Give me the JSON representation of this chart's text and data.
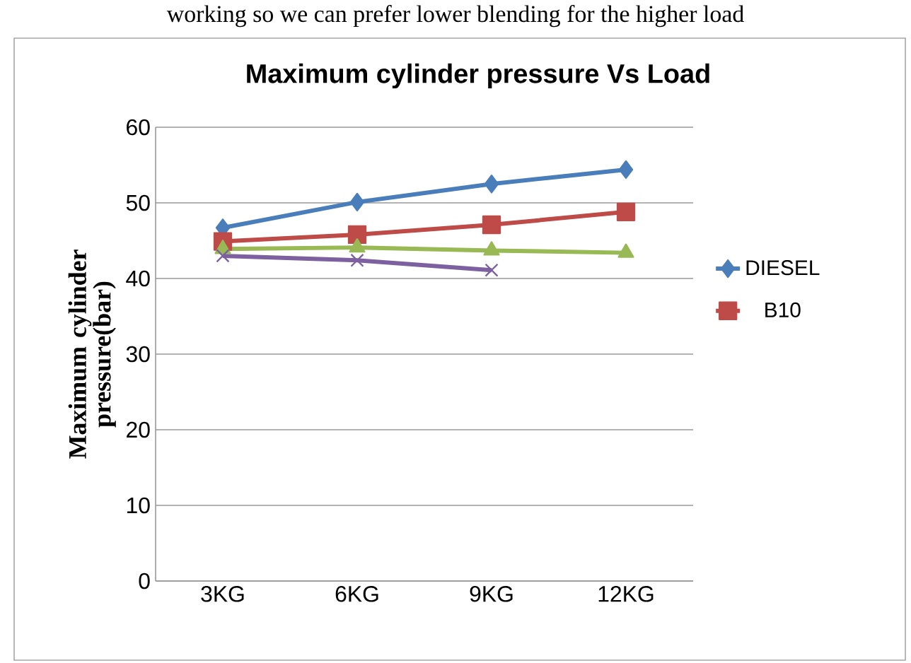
{
  "chart_data": {
    "type": "line",
    "title": "Maximum cylinder pressure Vs Load",
    "ylabel": "Maximum cylinder pressure(bar)",
    "annotations": [
      "working so we can prefer lower blending for the higher load"
    ],
    "categories": [
      "3KG",
      "6KG",
      "9KG",
      "12KG"
    ],
    "series": [
      {
        "name": "DIESEL",
        "color": "#4a7ebb",
        "marker": "diamond",
        "values": [
          46.7,
          50.1,
          52.5,
          54.4
        ]
      },
      {
        "name": "B10",
        "color": "#be4b48",
        "marker": "square",
        "values": [
          44.9,
          45.8,
          47.1,
          48.8
        ]
      },
      {
        "color": "#98b954",
        "marker": "triangle",
        "values": [
          43.9,
          44.1,
          43.7,
          43.4
        ]
      },
      {
        "color": "#7d60a0",
        "marker": "cross",
        "values": [
          43.0,
          42.4,
          41.1,
          null
        ]
      }
    ],
    "ylim": [
      0,
      60
    ],
    "yticks": [
      0,
      10,
      20,
      30,
      40,
      50,
      60
    ],
    "grid": "y",
    "legend": "right",
    "line_style": "solid"
  }
}
